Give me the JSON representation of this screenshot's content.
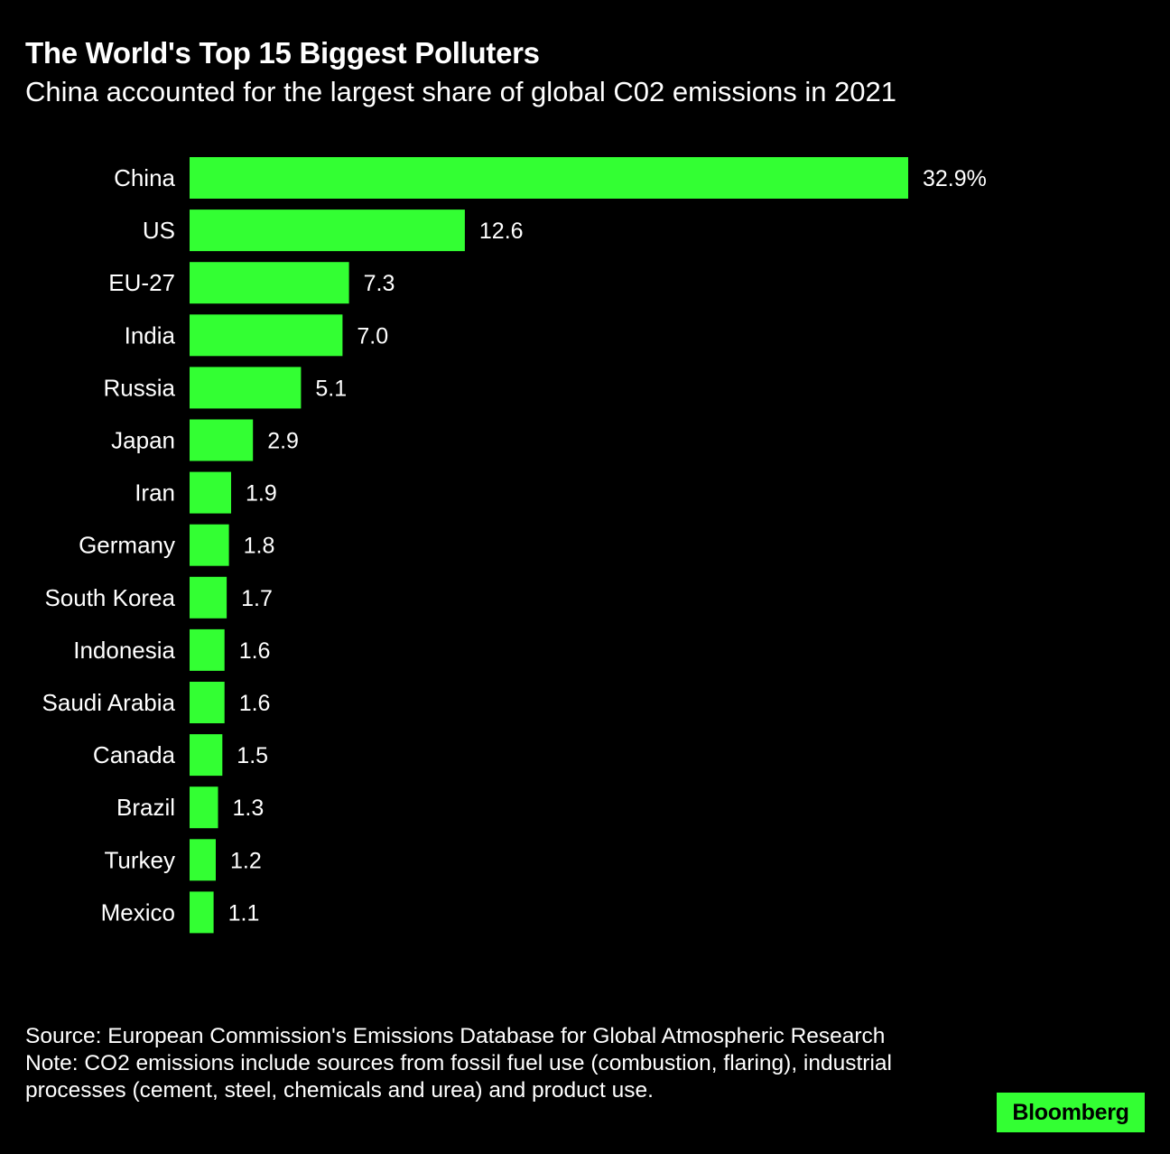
{
  "header": {
    "title": "The World's Top 15 Biggest Polluters",
    "subtitle": "China accounted for the largest share of global C02 emissions in 2021"
  },
  "footer": {
    "source": "Source: European Commission's Emissions Database for Global Atmospheric Research",
    "note": "Note: CO2 emissions include sources from fossil fuel use (combustion, flaring), industrial processes (cement, steel, chemicals and urea) and product use."
  },
  "brand": {
    "logo_text": "Bloomberg",
    "accent_color": "#33ff33"
  },
  "chart_data": {
    "type": "bar",
    "orientation": "horizontal",
    "title": "The World's Top 15 Biggest Polluters",
    "subtitle": "China accounted for the largest share of global C02 emissions in 2021",
    "xlabel": "",
    "ylabel": "",
    "unit": "%",
    "xlim": [
      0,
      32.9
    ],
    "grid": false,
    "legend": "none",
    "bar_color": "#33ff33",
    "categories": [
      "China",
      "US",
      "EU-27",
      "India",
      "Russia",
      "Japan",
      "Iran",
      "Germany",
      "South Korea",
      "Indonesia",
      "Saudi Arabia",
      "Canada",
      "Brazil",
      "Turkey",
      "Mexico"
    ],
    "values": [
      32.9,
      12.6,
      7.3,
      7.0,
      5.1,
      2.9,
      1.9,
      1.8,
      1.7,
      1.6,
      1.6,
      1.5,
      1.3,
      1.2,
      1.1
    ],
    "value_labels": [
      "32.9%",
      "12.6",
      "7.3",
      "7.0",
      "5.1",
      "2.9",
      "1.9",
      "1.8",
      "1.7",
      "1.6",
      "1.6",
      "1.5",
      "1.3",
      "1.2",
      "1.1"
    ]
  }
}
